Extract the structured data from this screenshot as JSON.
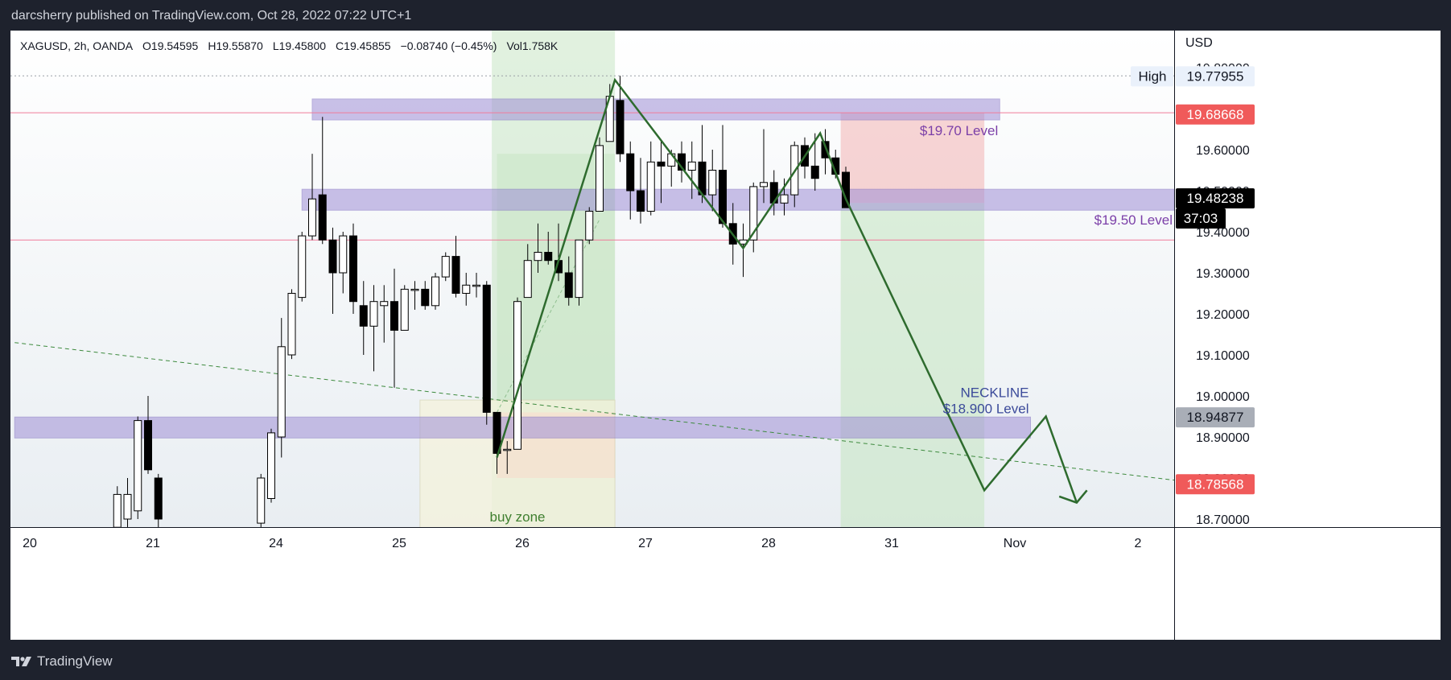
{
  "header": {
    "publisher_line": "darcsherry published on TradingView.com, Oct 28, 2022 07:22 UTC+1"
  },
  "legend": {
    "symbol": "XAGUSD, 2h, OANDA",
    "open": "O19.54595",
    "high": "H19.55870",
    "low": "L19.45800",
    "close": "C19.45855",
    "change": "−0.08740 (−0.45%)",
    "volume": "Vol1.758K"
  },
  "footer": {
    "brand": "TradingView"
  },
  "colors": {
    "bull_body": "#ffffff",
    "bear_body": "#000000",
    "level_band": "#9f8fd6",
    "level_text": "#7b3fa8",
    "projection_line": "#2e6b2e",
    "last_price_tag": "#000000",
    "high_tag_bg": "#eaf1fb",
    "red_tag": "#f05a5a",
    "grey_tag": "#a9aeb7",
    "zone_green": "#c8e6c4",
    "zone_red": "#f3b3b3",
    "zone_yellow": "#f5f3dc"
  },
  "chart_data": {
    "type": "candlestick",
    "symbol": "XAGUSD",
    "interval": "2h",
    "exchange": "OANDA",
    "currency": "USD",
    "ylim": [
      18.67,
      19.88
    ],
    "y_ticks": [
      18.7,
      18.8,
      18.9,
      19.0,
      19.1,
      19.2,
      19.3,
      19.4,
      19.5,
      19.6,
      19.7,
      19.8
    ],
    "y_tick_labels": [
      "18.70000",
      "18.80000",
      "18.90000",
      "19.00000",
      "19.10000",
      "19.20000",
      "19.30000",
      "19.40000",
      "19.50000",
      "19.60000",
      "19.70000",
      "19.80000"
    ],
    "x_ticks": [
      {
        "label": "20",
        "bar": -4
      },
      {
        "label": "21",
        "bar": 8
      },
      {
        "label": "24",
        "bar": 20
      },
      {
        "label": "25",
        "bar": 32
      },
      {
        "label": "26",
        "bar": 44
      },
      {
        "label": "27",
        "bar": 56
      },
      {
        "label": "28",
        "bar": 68
      },
      {
        "label": "31",
        "bar": 80
      },
      {
        "label": "Nov",
        "bar": 92
      },
      {
        "label": "2",
        "bar": 104
      }
    ],
    "candles": [
      {
        "bar": 5,
        "o": 18.68,
        "h": 18.78,
        "l": 18.65,
        "c": 18.76
      },
      {
        "bar": 6,
        "o": 18.7,
        "h": 18.8,
        "l": 18.66,
        "c": 18.76
      },
      {
        "bar": 7,
        "o": 18.72,
        "h": 18.95,
        "l": 18.7,
        "c": 18.94
      },
      {
        "bar": 8,
        "o": 18.94,
        "h": 19.0,
        "l": 18.81,
        "c": 18.82
      },
      {
        "bar": 9,
        "o": 18.8,
        "h": 18.81,
        "l": 18.66,
        "c": 18.7
      },
      {
        "bar": 19,
        "o": 18.69,
        "h": 18.81,
        "l": 18.67,
        "c": 18.8
      },
      {
        "bar": 20,
        "o": 18.75,
        "h": 18.92,
        "l": 18.74,
        "c": 18.91
      },
      {
        "bar": 21,
        "o": 18.9,
        "h": 19.19,
        "l": 18.85,
        "c": 19.12
      },
      {
        "bar": 22,
        "o": 19.1,
        "h": 19.26,
        "l": 19.09,
        "c": 19.25
      },
      {
        "bar": 23,
        "o": 19.24,
        "h": 19.4,
        "l": 19.23,
        "c": 19.39
      },
      {
        "bar": 24,
        "o": 19.39,
        "h": 19.59,
        "l": 19.38,
        "c": 19.48
      },
      {
        "bar": 25,
        "o": 19.49,
        "h": 19.68,
        "l": 19.37,
        "c": 19.38
      },
      {
        "bar": 26,
        "o": 19.38,
        "h": 19.41,
        "l": 19.2,
        "c": 19.3
      },
      {
        "bar": 27,
        "o": 19.3,
        "h": 19.4,
        "l": 19.25,
        "c": 19.39
      },
      {
        "bar": 28,
        "o": 19.39,
        "h": 19.42,
        "l": 19.2,
        "c": 19.23
      },
      {
        "bar": 29,
        "o": 19.22,
        "h": 19.28,
        "l": 19.1,
        "c": 19.17
      },
      {
        "bar": 30,
        "o": 19.17,
        "h": 19.27,
        "l": 19.06,
        "c": 19.23
      },
      {
        "bar": 31,
        "o": 19.22,
        "h": 19.27,
        "l": 19.13,
        "c": 19.23
      },
      {
        "bar": 32,
        "o": 19.23,
        "h": 19.31,
        "l": 19.02,
        "c": 19.16
      },
      {
        "bar": 33,
        "o": 19.16,
        "h": 19.27,
        "l": 19.16,
        "c": 19.26
      },
      {
        "bar": 34,
        "o": 19.26,
        "h": 19.28,
        "l": 19.21,
        "c": 19.26
      },
      {
        "bar": 35,
        "o": 19.26,
        "h": 19.28,
        "l": 19.21,
        "c": 19.22
      },
      {
        "bar": 36,
        "o": 19.22,
        "h": 19.3,
        "l": 19.21,
        "c": 19.29
      },
      {
        "bar": 37,
        "o": 19.29,
        "h": 19.35,
        "l": 19.28,
        "c": 19.34
      },
      {
        "bar": 38,
        "o": 19.34,
        "h": 19.39,
        "l": 19.24,
        "c": 19.25
      },
      {
        "bar": 39,
        "o": 19.25,
        "h": 19.3,
        "l": 19.22,
        "c": 19.27
      },
      {
        "bar": 40,
        "o": 19.27,
        "h": 19.3,
        "l": 19.24,
        "c": 19.27
      },
      {
        "bar": 41,
        "o": 19.27,
        "h": 19.28,
        "l": 18.93,
        "c": 18.96
      },
      {
        "bar": 42,
        "o": 18.96,
        "h": 18.96,
        "l": 18.81,
        "c": 18.86
      },
      {
        "bar": 43,
        "o": 18.87,
        "h": 18.89,
        "l": 18.81,
        "c": 18.87
      },
      {
        "bar": 44,
        "o": 18.87,
        "h": 19.24,
        "l": 18.87,
        "c": 19.23
      },
      {
        "bar": 45,
        "o": 19.24,
        "h": 19.37,
        "l": 19.24,
        "c": 19.33
      },
      {
        "bar": 46,
        "o": 19.33,
        "h": 19.42,
        "l": 19.3,
        "c": 19.35
      },
      {
        "bar": 47,
        "o": 19.35,
        "h": 19.4,
        "l": 19.32,
        "c": 19.33
      },
      {
        "bar": 48,
        "o": 19.33,
        "h": 19.42,
        "l": 19.28,
        "c": 19.3
      },
      {
        "bar": 49,
        "o": 19.3,
        "h": 19.34,
        "l": 19.22,
        "c": 19.24
      },
      {
        "bar": 50,
        "o": 19.24,
        "h": 19.38,
        "l": 19.22,
        "c": 19.38
      },
      {
        "bar": 51,
        "o": 19.38,
        "h": 19.46,
        "l": 19.37,
        "c": 19.45
      },
      {
        "bar": 52,
        "o": 19.45,
        "h": 19.63,
        "l": 19.45,
        "c": 19.61
      },
      {
        "bar": 53,
        "o": 19.62,
        "h": 19.76,
        "l": 19.62,
        "c": 19.73
      },
      {
        "bar": 54,
        "o": 19.72,
        "h": 19.78,
        "l": 19.57,
        "c": 19.59
      },
      {
        "bar": 55,
        "o": 19.59,
        "h": 19.62,
        "l": 19.43,
        "c": 19.5
      },
      {
        "bar": 56,
        "o": 19.5,
        "h": 19.58,
        "l": 19.42,
        "c": 19.45
      },
      {
        "bar": 57,
        "o": 19.45,
        "h": 19.62,
        "l": 19.44,
        "c": 19.57
      },
      {
        "bar": 58,
        "o": 19.57,
        "h": 19.62,
        "l": 19.47,
        "c": 19.56
      },
      {
        "bar": 59,
        "o": 19.56,
        "h": 19.6,
        "l": 19.51,
        "c": 19.59
      },
      {
        "bar": 60,
        "o": 19.59,
        "h": 19.62,
        "l": 19.52,
        "c": 19.55
      },
      {
        "bar": 61,
        "o": 19.55,
        "h": 19.62,
        "l": 19.48,
        "c": 19.57
      },
      {
        "bar": 62,
        "o": 19.57,
        "h": 19.66,
        "l": 19.47,
        "c": 19.49
      },
      {
        "bar": 63,
        "o": 19.49,
        "h": 19.6,
        "l": 19.45,
        "c": 19.55
      },
      {
        "bar": 64,
        "o": 19.55,
        "h": 19.66,
        "l": 19.41,
        "c": 19.42
      },
      {
        "bar": 65,
        "o": 19.42,
        "h": 19.47,
        "l": 19.32,
        "c": 19.37
      },
      {
        "bar": 66,
        "o": 19.37,
        "h": 19.42,
        "l": 19.29,
        "c": 19.38
      },
      {
        "bar": 67,
        "o": 19.38,
        "h": 19.52,
        "l": 19.35,
        "c": 19.51
      },
      {
        "bar": 68,
        "o": 19.51,
        "h": 19.65,
        "l": 19.47,
        "c": 19.52
      },
      {
        "bar": 69,
        "o": 19.52,
        "h": 19.55,
        "l": 19.44,
        "c": 19.47
      },
      {
        "bar": 70,
        "o": 19.47,
        "h": 19.53,
        "l": 19.44,
        "c": 19.49
      },
      {
        "bar": 71,
        "o": 19.49,
        "h": 19.62,
        "l": 19.46,
        "c": 19.61
      },
      {
        "bar": 72,
        "o": 19.61,
        "h": 19.63,
        "l": 19.53,
        "c": 19.56
      },
      {
        "bar": 73,
        "o": 19.56,
        "h": 19.64,
        "l": 19.5,
        "c": 19.53
      },
      {
        "bar": 74,
        "o": 19.62,
        "h": 19.65,
        "l": 19.54,
        "c": 19.58
      },
      {
        "bar": 75,
        "o": 19.58,
        "h": 19.6,
        "l": 19.53,
        "c": 19.54
      },
      {
        "bar": 76,
        "o": 19.545,
        "h": 19.5587,
        "l": 19.458,
        "c": 19.4586
      }
    ],
    "levels": [
      {
        "label": "$19.70 Level",
        "bar_from": 24,
        "bar_to": 91,
        "price": 19.7
      },
      {
        "label": "$19.50 Level",
        "bar_from": 23,
        "bar_to": 108,
        "price": 19.48
      },
      {
        "label": "NECKLINE",
        "label2": "$18.900 Level",
        "bar_from": -5,
        "bar_to": 94,
        "price": 18.925
      }
    ],
    "zones": {
      "buy_zone_label": "buy zone",
      "green_vertical": {
        "bar_from": 41.5,
        "bar_to": 53.5
      },
      "position": {
        "bar_from": 42,
        "bar_to": 53.5,
        "entry": 18.96,
        "stop": 18.8,
        "target": 19.59
      },
      "buy_zone": {
        "bar_from": 34.5,
        "bar_to": 53.5,
        "price_from": 18.67,
        "price_to": 18.99
      },
      "short_position": {
        "bar_from": 75.5,
        "bar_to": 89.5,
        "entry": 19.47,
        "stop": 19.69,
        "target": 18.67
      }
    },
    "projection_path": [
      {
        "bar": 42,
        "price": 18.85
      },
      {
        "bar": 53.5,
        "price": 19.77
      },
      {
        "bar": 66,
        "price": 19.36
      },
      {
        "bar": 73.5,
        "price": 19.64
      },
      {
        "bar": 76,
        "price": 19.48
      },
      {
        "bar": 89.5,
        "price": 18.77
      },
      {
        "bar": 95.5,
        "price": 18.95
      },
      {
        "bar": 98.5,
        "price": 18.74
      }
    ],
    "arrow_head": [
      {
        "bar": 96.8,
        "price": 18.755
      },
      {
        "bar": 98.5,
        "price": 18.74
      },
      {
        "bar": 99.5,
        "price": 18.77
      }
    ],
    "trendline": [
      {
        "bar": -5,
        "price": 19.13
      },
      {
        "bar": 113,
        "price": 18.78
      }
    ],
    "dashed_guide": [
      {
        "bar": 42,
        "price": 18.96
      },
      {
        "bar": 52,
        "price": 19.43
      }
    ],
    "horizontal_lines": [
      {
        "price": 19.69,
        "color": "#f07b9a"
      },
      {
        "price": 19.38,
        "color": "#f07b9a"
      },
      {
        "price": 19.78,
        "color": "#9aa0a6",
        "dotted": true
      }
    ],
    "price_tags": [
      {
        "price": 19.77955,
        "label": "19.77955",
        "prefix": "High",
        "kind": "high"
      },
      {
        "price": 19.68668,
        "label": "19.68668",
        "kind": "red"
      },
      {
        "price": 19.48238,
        "label": "19.48238",
        "countdown": "37:03",
        "kind": "last"
      },
      {
        "price": 18.94877,
        "label": "18.94877",
        "kind": "grey"
      },
      {
        "price": 18.78568,
        "label": "18.78568",
        "kind": "red"
      }
    ]
  }
}
